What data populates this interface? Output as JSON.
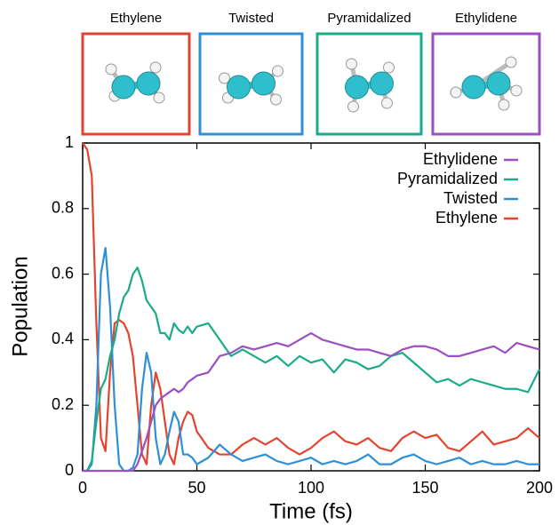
{
  "chart_data": {
    "type": "line",
    "x_label": "Time (fs)",
    "y_label": "Population",
    "x": [
      0,
      2,
      4,
      6,
      8,
      10,
      12,
      14,
      16,
      18,
      20,
      22,
      24,
      26,
      28,
      30,
      32,
      34,
      36,
      38,
      40,
      42,
      44,
      46,
      48,
      50,
      55,
      60,
      65,
      70,
      75,
      80,
      85,
      90,
      95,
      100,
      105,
      110,
      115,
      120,
      125,
      130,
      135,
      140,
      145,
      150,
      155,
      160,
      165,
      170,
      175,
      180,
      185,
      190,
      195,
      200
    ],
    "series": [
      {
        "name": "Ethylidene",
        "color": "#9b4fc0",
        "values": [
          0,
          0,
          0,
          0,
          0,
          0,
          0,
          0,
          0,
          0,
          0,
          0,
          0.02,
          0.06,
          0.1,
          0.15,
          0.2,
          0.22,
          0.23,
          0.24,
          0.25,
          0.24,
          0.25,
          0.27,
          0.28,
          0.29,
          0.3,
          0.35,
          0.36,
          0.38,
          0.37,
          0.38,
          0.39,
          0.38,
          0.4,
          0.42,
          0.4,
          0.39,
          0.38,
          0.37,
          0.37,
          0.36,
          0.35,
          0.37,
          0.38,
          0.38,
          0.37,
          0.35,
          0.35,
          0.36,
          0.37,
          0.38,
          0.36,
          0.39,
          0.38,
          0.37
        ]
      },
      {
        "name": "Pyramidalized",
        "color": "#1aab8a",
        "values": [
          0,
          0,
          0.03,
          0.15,
          0.25,
          0.28,
          0.35,
          0.4,
          0.48,
          0.53,
          0.55,
          0.6,
          0.62,
          0.58,
          0.52,
          0.5,
          0.48,
          0.42,
          0.42,
          0.4,
          0.45,
          0.43,
          0.42,
          0.44,
          0.42,
          0.44,
          0.45,
          0.4,
          0.35,
          0.37,
          0.35,
          0.33,
          0.35,
          0.32,
          0.35,
          0.33,
          0.34,
          0.3,
          0.34,
          0.33,
          0.31,
          0.32,
          0.35,
          0.36,
          0.33,
          0.3,
          0.27,
          0.28,
          0.26,
          0.28,
          0.27,
          0.26,
          0.25,
          0.25,
          0.24,
          0.31
        ]
      },
      {
        "name": "Twisted",
        "color": "#2f8fd6",
        "values": [
          0,
          0,
          0.02,
          0.2,
          0.6,
          0.68,
          0.5,
          0.2,
          0.02,
          0,
          0,
          0.01,
          0.05,
          0.25,
          0.36,
          0.3,
          0.1,
          0.02,
          0.05,
          0.12,
          0.18,
          0.15,
          0.05,
          0.05,
          0.04,
          0.02,
          0.04,
          0.08,
          0.05,
          0.03,
          0.04,
          0.05,
          0.03,
          0.02,
          0.03,
          0.04,
          0.02,
          0.03,
          0.02,
          0.03,
          0.05,
          0.02,
          0.02,
          0.04,
          0.05,
          0.03,
          0.02,
          0.03,
          0.04,
          0.02,
          0.03,
          0.02,
          0.02,
          0.03,
          0.02,
          0.02
        ]
      },
      {
        "name": "Ethylene",
        "color": "#e2452f",
        "values": [
          1,
          0.98,
          0.9,
          0.45,
          0.1,
          0.06,
          0.3,
          0.45,
          0.46,
          0.45,
          0.42,
          0.35,
          0.2,
          0.05,
          0.02,
          0.2,
          0.3,
          0.25,
          0.15,
          0.05,
          0.02,
          0.1,
          0.15,
          0.18,
          0.17,
          0.12,
          0.07,
          0.05,
          0.05,
          0.08,
          0.1,
          0.08,
          0.1,
          0.07,
          0.05,
          0.07,
          0.1,
          0.12,
          0.09,
          0.08,
          0.1,
          0.07,
          0.06,
          0.1,
          0.12,
          0.1,
          0.11,
          0.07,
          0.06,
          0.09,
          0.12,
          0.08,
          0.09,
          0.1,
          0.13,
          0.1
        ]
      }
    ],
    "xlim": [
      0,
      200
    ],
    "xticks": [
      0,
      50,
      100,
      150,
      200
    ],
    "ylim": [
      0,
      1
    ],
    "yticks": [
      0,
      0.2,
      0.4,
      0.6,
      0.8,
      1
    ],
    "legend": "upper right",
    "panels": [
      {
        "label": "Ethylene",
        "color": "#e2452f"
      },
      {
        "label": "Twisted",
        "color": "#2f8fd6"
      },
      {
        "label": "Pyramidalized",
        "color": "#1aab8a"
      },
      {
        "label": "Ethylidene",
        "color": "#9b4fc0"
      }
    ]
  }
}
